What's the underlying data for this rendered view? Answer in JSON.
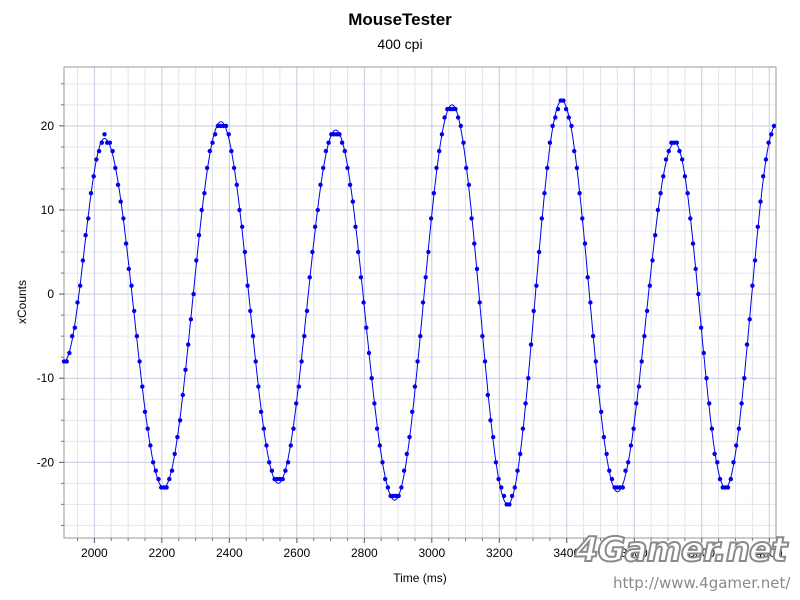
{
  "chart_data": {
    "type": "scatter",
    "title": "MouseTester",
    "subtitle": "400 cpi",
    "xlabel": "Time (ms)",
    "ylabel": "xCounts",
    "xlim": [
      1910,
      4020
    ],
    "ylim": [
      -29,
      27
    ],
    "xticks": [
      2000,
      2200,
      2400,
      2600,
      2800,
      3000,
      3200,
      3400,
      3600,
      3800,
      4000
    ],
    "yticks": [
      -20,
      -10,
      0,
      10,
      20
    ],
    "grid": true,
    "series": [
      {
        "style": "points+line",
        "color": "#0000ee",
        "sample_interval_ms": 8,
        "extrema": [
          {
            "x": 1910,
            "y": -8
          },
          {
            "x": 2030,
            "y": 18.5
          },
          {
            "x": 2205,
            "y": -23
          },
          {
            "x": 2375,
            "y": 20.5
          },
          {
            "x": 2545,
            "y": -22.5
          },
          {
            "x": 2715,
            "y": 19.5
          },
          {
            "x": 2890,
            "y": -24.5
          },
          {
            "x": 3060,
            "y": 22.5
          },
          {
            "x": 3225,
            "y": -25
          },
          {
            "x": 3385,
            "y": 23
          },
          {
            "x": 3550,
            "y": -23.5
          },
          {
            "x": 3720,
            "y": 18
          },
          {
            "x": 3870,
            "y": -23
          },
          {
            "x": 4020,
            "y": 20
          }
        ]
      }
    ]
  },
  "watermark": {
    "logo": "4Gamer.net",
    "url": "http://www.4gamer.net/"
  }
}
